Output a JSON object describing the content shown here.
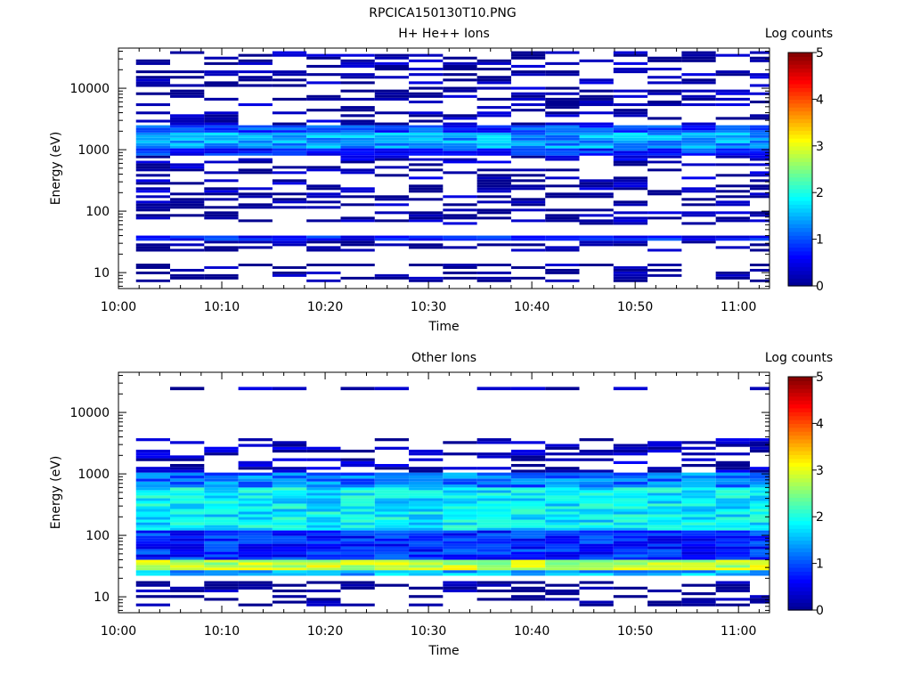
{
  "figure": {
    "title": "RPCICA150130T10.PNG"
  },
  "colors": {
    "background": "#ffffff",
    "axis": "#000000",
    "colormap": [
      "#00008f",
      "#0000ff",
      "#0080ff",
      "#00ffff",
      "#80ff80",
      "#ffff00",
      "#ff8000",
      "#ff0000",
      "#800000"
    ]
  },
  "chart_data": [
    {
      "type": "heatmap",
      "title": "H+ He++ Ions",
      "xlabel": "Time",
      "ylabel": "Energy (eV)",
      "x_ticks": [
        "10:00",
        "10:10",
        "10:20",
        "10:30",
        "10:40",
        "10:50",
        "11:00"
      ],
      "x_range_min": [
        0,
        63
      ],
      "y_scale": "log",
      "y_ticks": [
        "10",
        "100",
        "1000",
        "10000"
      ],
      "y_range": [
        5.5,
        45000
      ],
      "colorbar": {
        "label": "Log counts",
        "range": [
          0,
          5
        ],
        "ticks": [
          "0",
          "1",
          "2",
          "3",
          "4",
          "5"
        ]
      },
      "time_bins_start_min": [
        1.7,
        5,
        8.3,
        11.6,
        14.9,
        18.2,
        21.5,
        24.8,
        28.1,
        31.4,
        34.7,
        38,
        41.3,
        44.6,
        47.9,
        51.2,
        54.5,
        57.8,
        61.1
      ],
      "bands": [
        {
          "e_lo": 1050,
          "e_hi": 1900,
          "value": 1.4
        },
        {
          "e_lo": 1900,
          "e_hi": 2500,
          "value": 0.9
        },
        {
          "e_lo": 800,
          "e_hi": 1050,
          "value": 0.8
        },
        {
          "e_lo": 33,
          "e_hi": 40,
          "value": 0.7
        },
        {
          "e_lo": 600,
          "e_hi": 800,
          "value": 0.3,
          "sparse": true
        },
        {
          "e_lo": 200,
          "e_hi": 600,
          "value": 0.15,
          "sparse": true
        },
        {
          "e_lo": 2500,
          "e_hi": 40000,
          "value": 0.1,
          "sparse": true
        },
        {
          "e_lo": 60,
          "e_hi": 200,
          "value": 0.08,
          "sparse": true
        },
        {
          "e_lo": 22,
          "e_hi": 33,
          "value": 0.05,
          "sparse": true
        },
        {
          "e_lo": 7,
          "e_hi": 14,
          "value": 0.0,
          "sparse": true
        }
      ]
    },
    {
      "type": "heatmap",
      "title": "Other Ions",
      "xlabel": "Time",
      "ylabel": "Energy (eV)",
      "x_ticks": [
        "10:00",
        "10:10",
        "10:20",
        "10:30",
        "10:40",
        "10:50",
        "11:00"
      ],
      "x_range_min": [
        0,
        63
      ],
      "y_scale": "log",
      "y_ticks": [
        "10",
        "100",
        "1000",
        "10000"
      ],
      "y_range": [
        5.5,
        45000
      ],
      "colorbar": {
        "label": "Log counts",
        "range": [
          0,
          5
        ],
        "ticks": [
          "0",
          "1",
          "2",
          "3",
          "4",
          "5"
        ]
      },
      "time_bins_start_min": [
        1.7,
        5,
        8.3,
        11.6,
        14.9,
        18.2,
        21.5,
        24.8,
        28.1,
        31.4,
        34.7,
        38,
        41.3,
        44.6,
        47.9,
        51.2,
        54.5,
        57.8,
        61.1
      ],
      "bands": [
        {
          "e_lo": 27,
          "e_hi": 40,
          "value": 2.8
        },
        {
          "e_lo": 120,
          "e_hi": 600,
          "value": 1.8
        },
        {
          "e_lo": 600,
          "e_hi": 1050,
          "value": 1.2
        },
        {
          "e_lo": 40,
          "e_hi": 120,
          "value": 0.8
        },
        {
          "e_lo": 22,
          "e_hi": 27,
          "value": 1.5
        },
        {
          "e_lo": 1050,
          "e_hi": 3800,
          "value": 0.2,
          "sparse": true
        },
        {
          "e_lo": 7,
          "e_hi": 18,
          "value": 0.0,
          "sparse": true
        },
        {
          "e_lo": 23000,
          "e_hi": 26000,
          "value": 0.1,
          "sparse": true
        }
      ]
    }
  ]
}
